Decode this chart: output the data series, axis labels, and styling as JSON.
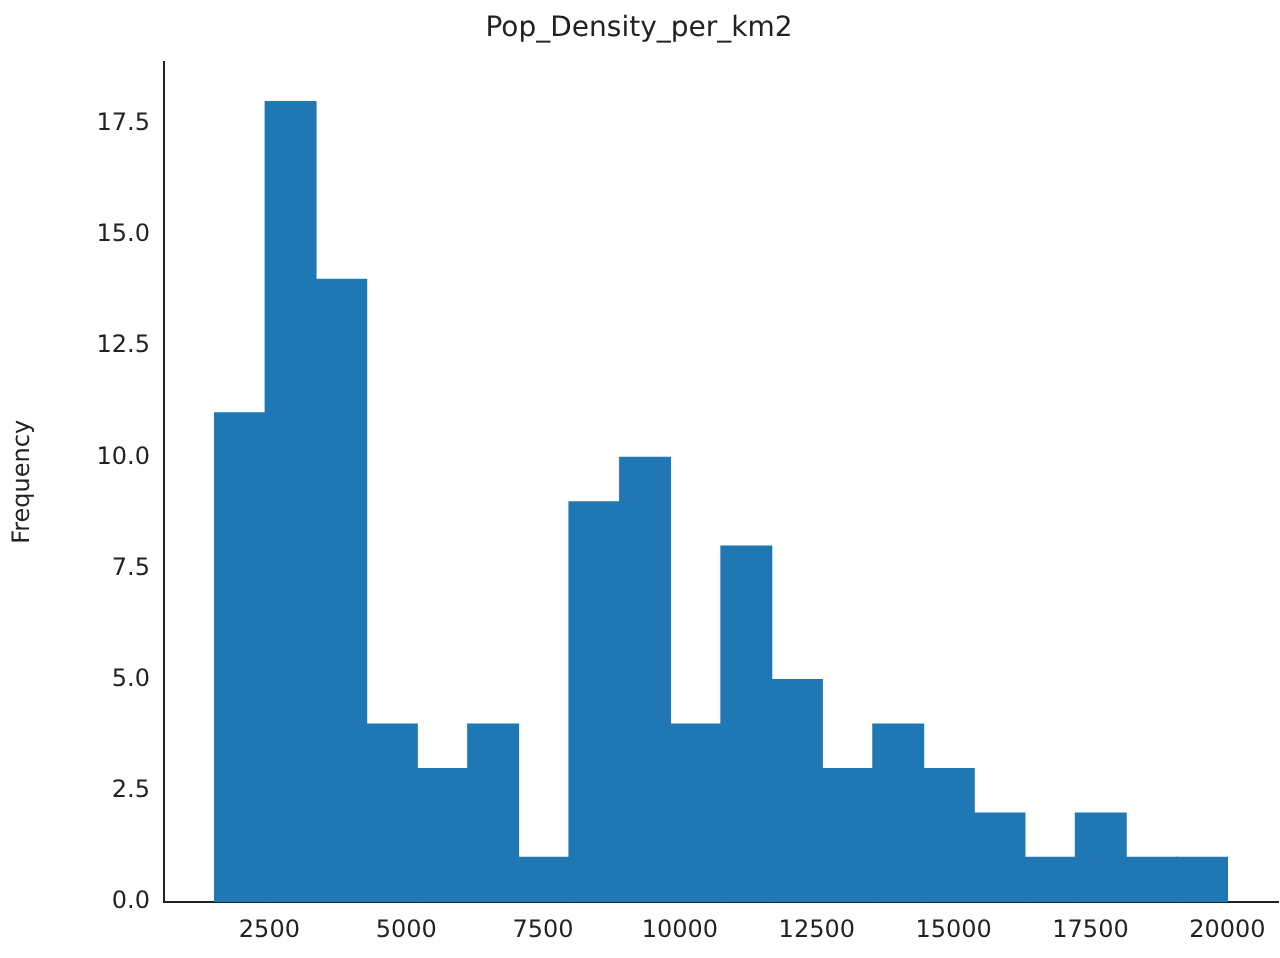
{
  "chart_data": {
    "type": "histogram",
    "title": "Pop_Density_per_km2",
    "ylabel": "Frequency",
    "bins": [
      1500,
      2425,
      3350,
      4275,
      5200,
      6125,
      7050,
      7975,
      8900,
      9825,
      10750,
      11675,
      12600,
      13525,
      14450,
      15375,
      16300,
      17225,
      18150,
      19075,
      20000
    ],
    "values": [
      11,
      18,
      14,
      4,
      3,
      4,
      1,
      9,
      10,
      4,
      8,
      5,
      3,
      4,
      3,
      2,
      1,
      2,
      1,
      1
    ],
    "color": "#1f77b4",
    "xlim": [
      575,
      20925
    ],
    "xticks": [
      2500,
      5000,
      7500,
      10000,
      12500,
      15000,
      17500,
      20000
    ],
    "ylim": [
      0,
      18.9
    ],
    "yticks": [
      {
        "value": 0,
        "label": "0.0"
      },
      {
        "value": 2.5,
        "label": "2.5"
      },
      {
        "value": 5,
        "label": "5.0"
      },
      {
        "value": 7.5,
        "label": "7.5"
      },
      {
        "value": 10,
        "label": "10.0"
      },
      {
        "value": 12.5,
        "label": "12.5"
      },
      {
        "value": 15,
        "label": "15.0"
      },
      {
        "value": 17.5,
        "label": "17.5"
      }
    ],
    "grid": false,
    "legend": false
  }
}
